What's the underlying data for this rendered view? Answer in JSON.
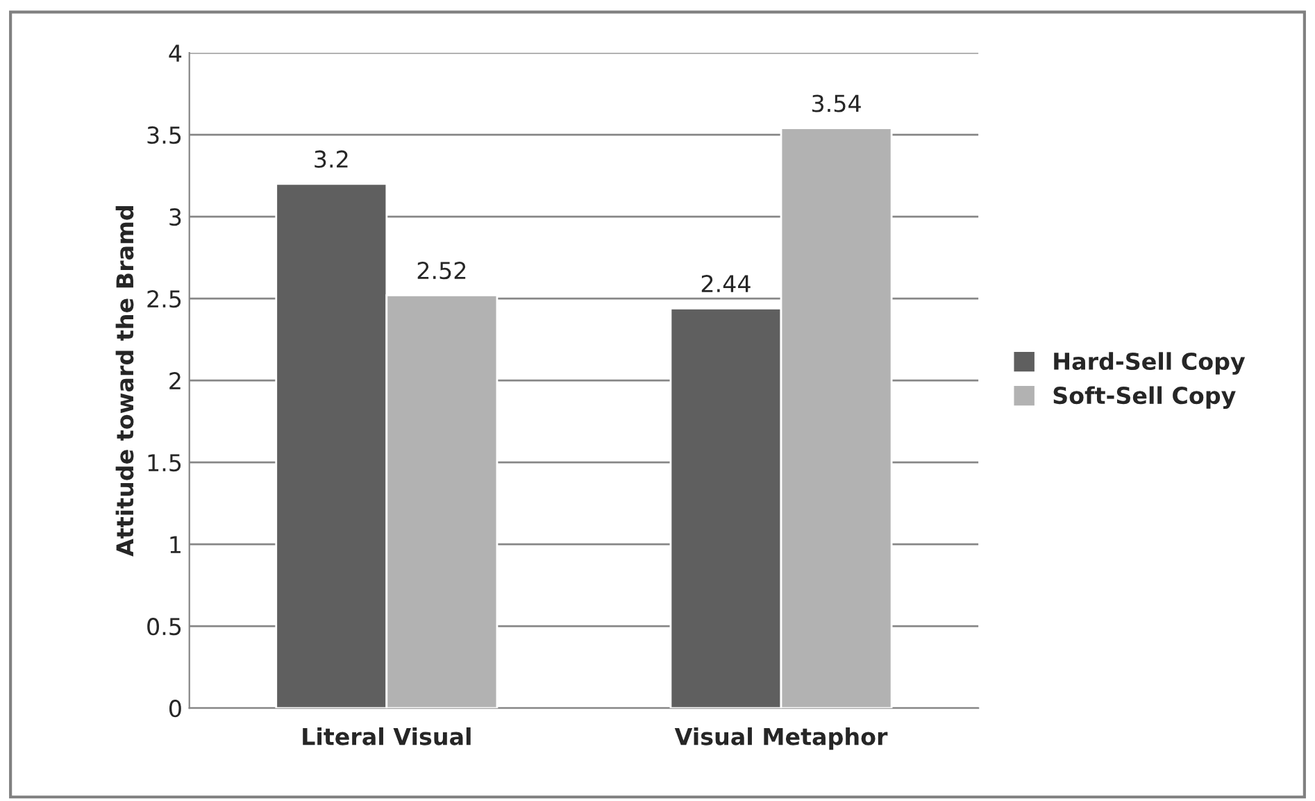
{
  "chart_data": {
    "type": "bar",
    "ylabel": "Attitude toward the Bramd",
    "categories": [
      "Literal Visual",
      "Visual Metaphor"
    ],
    "series": [
      {
        "name": "Hard-Sell Copy",
        "color": "#5f5f5f",
        "values": [
          3.2,
          2.44
        ]
      },
      {
        "name": "Soft-Sell Copy",
        "color": "#b2b2b2",
        "values": [
          2.52,
          3.54
        ]
      }
    ],
    "ylim": [
      0,
      4
    ],
    "yticks": [
      0,
      0.5,
      1,
      1.5,
      2,
      2.5,
      3,
      3.5,
      4
    ],
    "grid": "y",
    "legend": "right",
    "data_labels": true
  }
}
